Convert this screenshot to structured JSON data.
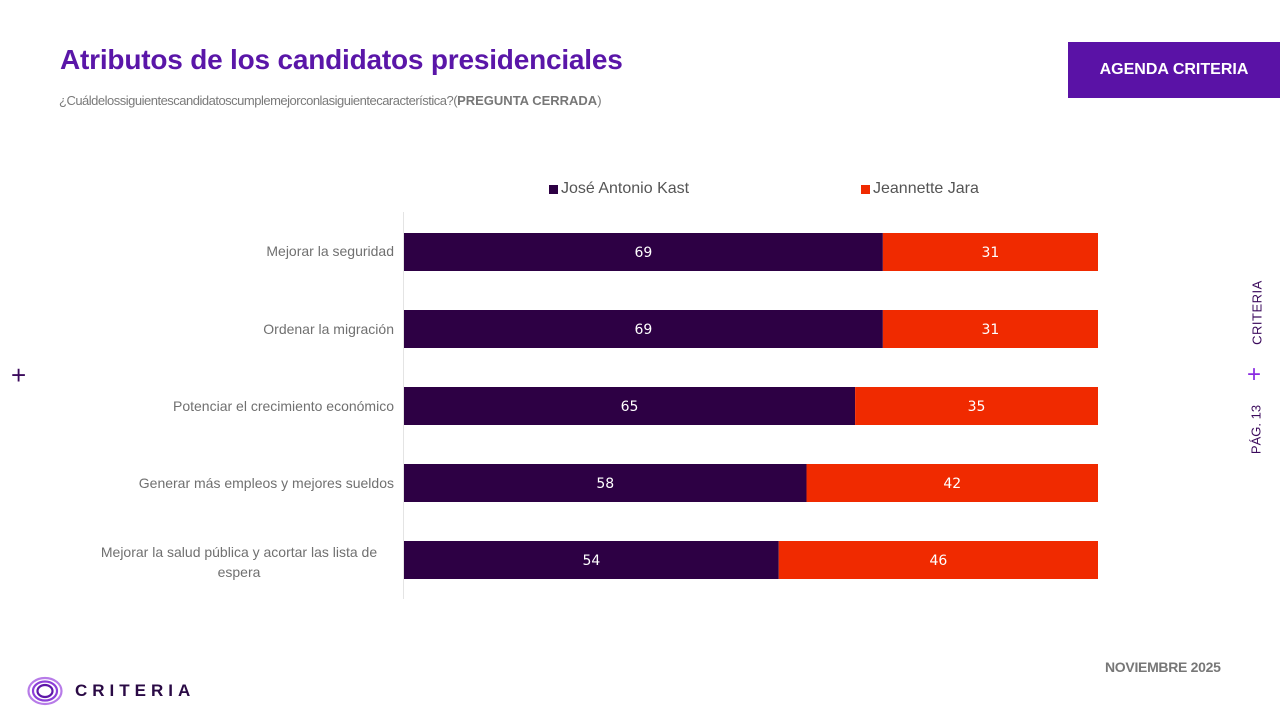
{
  "header": {
    "title": "Atributos de los candidatos presidenciales",
    "subtitle_question": "¿Cuáldelossiguientescandidatoscumplemejorconlasiguientecaracterística?(",
    "subtitle_bold": "PREGUNTA CERRADA",
    "subtitle_close": ")",
    "badge": "AGENDA CRITERIA"
  },
  "side": {
    "left_icon": "plus-icon",
    "right_brand": "CRITERIA",
    "right_icon": "plus-icon",
    "page": "PÁG. 13"
  },
  "footer": {
    "logo_text": "CRITERIA",
    "logo_icon": "concentric-rings-logo-icon",
    "date": "NOVIEMBRE 2025"
  },
  "colors": {
    "kast": "#2d0044",
    "jara": "#f02a00",
    "title": "#5a16a8",
    "badge": "#5a12a6"
  },
  "chart_data": {
    "type": "bar",
    "orientation": "horizontal",
    "stacked": true,
    "title": "Atributos de los candidatos presidenciales",
    "xlabel": "",
    "ylabel": "",
    "xlim": [
      0,
      100
    ],
    "grid": false,
    "legend_position": "top",
    "categories": [
      "Mejorar la seguridad",
      "Ordenar la migración",
      "Potenciar el crecimiento económico",
      "Generar más empleos y mejores sueldos",
      "Mejorar la salud pública y acortar las lista de espera"
    ],
    "series": [
      {
        "name": "José Antonio Kast",
        "color": "#2d0044",
        "values": [
          69,
          69,
          65,
          58,
          54
        ]
      },
      {
        "name": "Jeannette Jara",
        "color": "#f02a00",
        "values": [
          31,
          31,
          35,
          42,
          46
        ]
      }
    ]
  }
}
